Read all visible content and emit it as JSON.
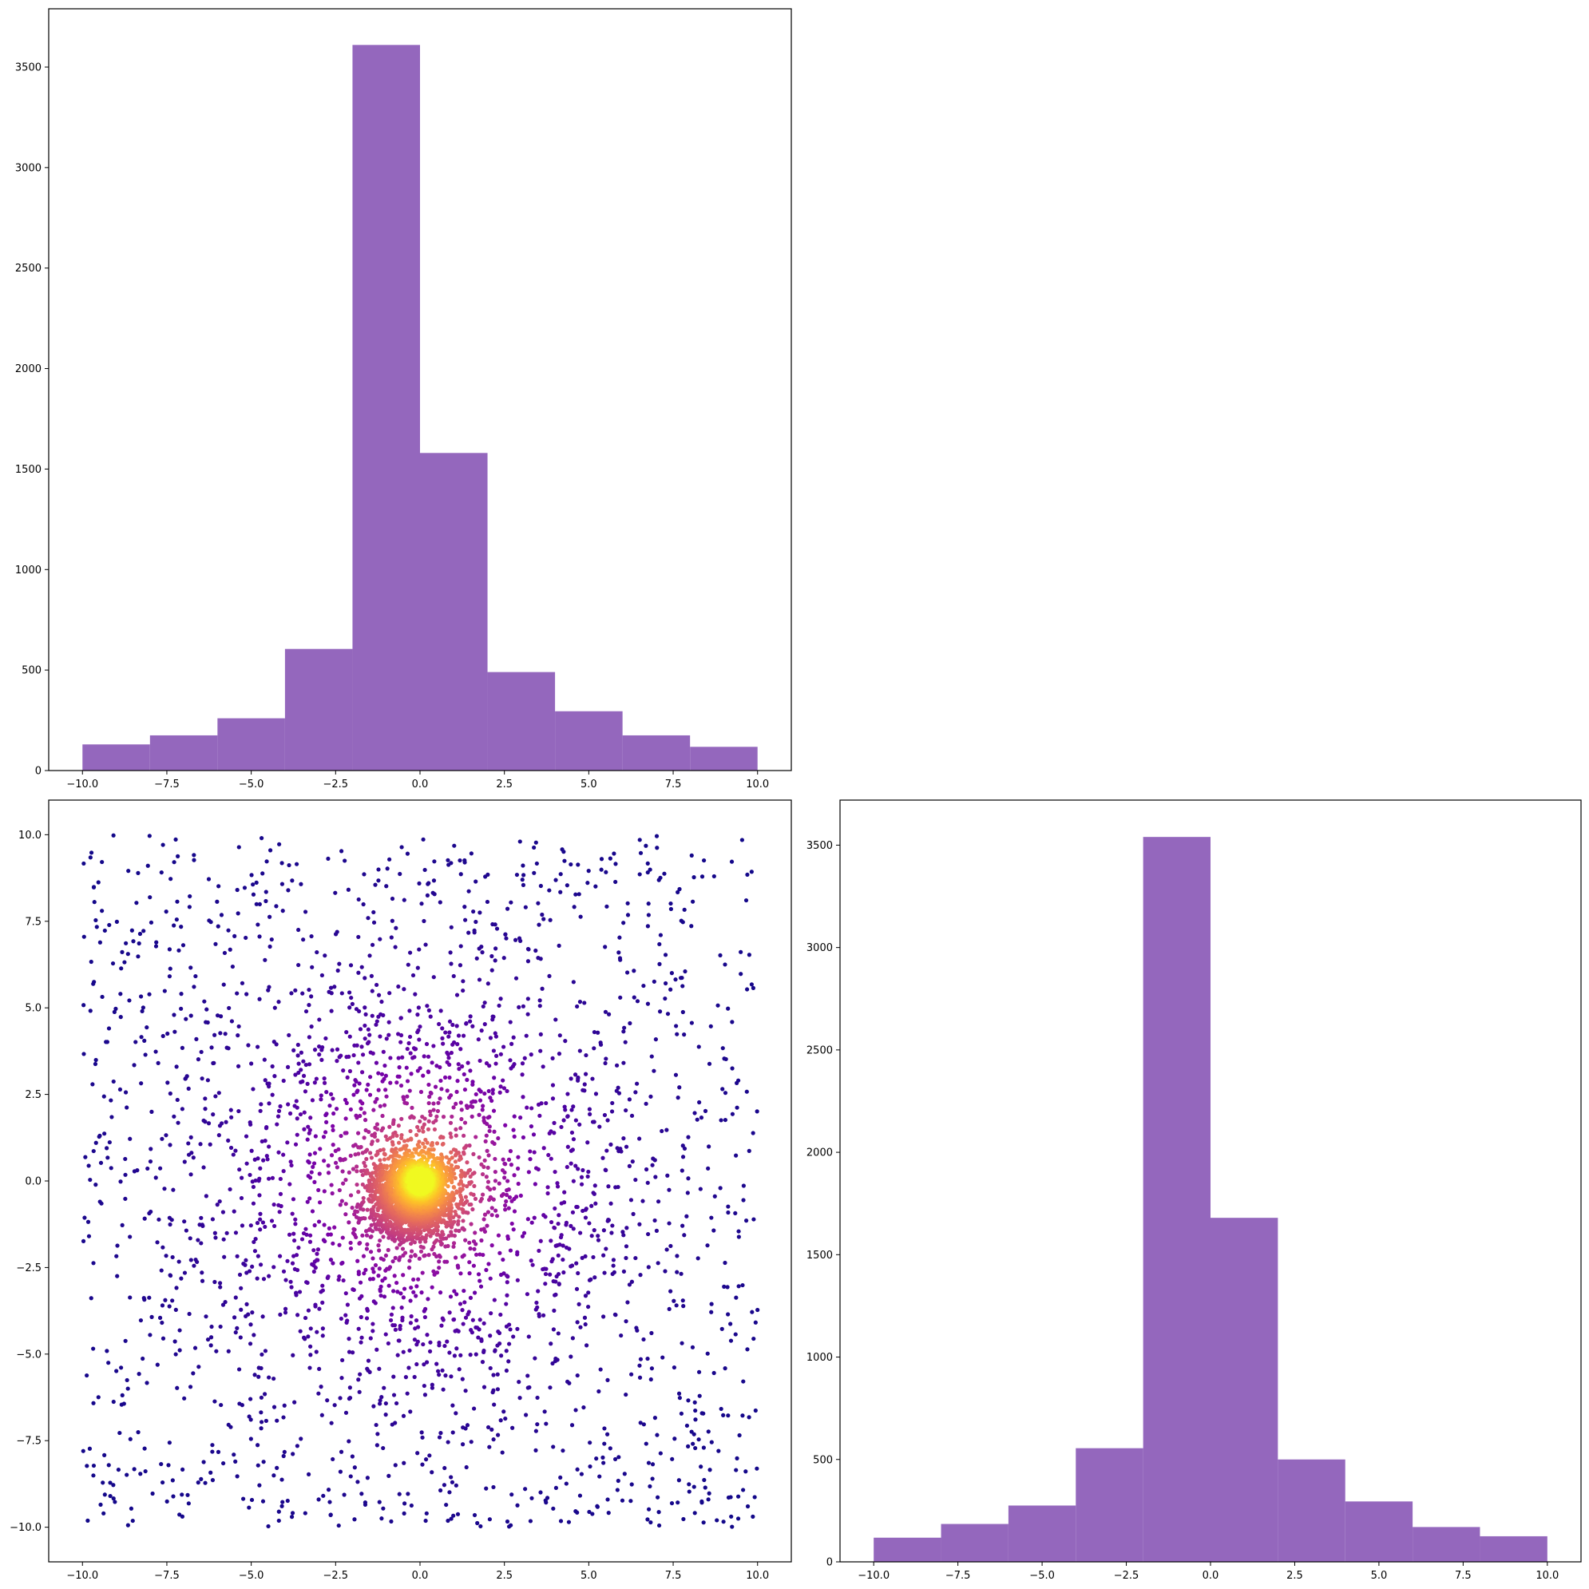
{
  "chart_data": [
    {
      "id": "hist-x",
      "type": "bar",
      "title": "",
      "xlabel": "",
      "ylabel": "",
      "bin_edges": [
        -10,
        -8,
        -6,
        -4,
        -2,
        0,
        2,
        4,
        6,
        8,
        10
      ],
      "values": [
        130,
        175,
        260,
        605,
        3610,
        1580,
        490,
        295,
        175,
        118
      ],
      "xlim": [
        -11,
        11
      ],
      "ylim": [
        0,
        3790
      ],
      "xticks": [
        -10.0,
        -7.5,
        -5.0,
        -2.5,
        0.0,
        2.5,
        5.0,
        7.5,
        10.0
      ],
      "xtick_labels": [
        "−10.0",
        "−7.5",
        "−5.0",
        "−2.5",
        "0.0",
        "2.5",
        "5.0",
        "7.5",
        "10.0"
      ],
      "yticks": [
        0,
        500,
        1000,
        1500,
        2000,
        2500,
        3000,
        3500
      ],
      "ytick_labels": [
        "0",
        "500",
        "1000",
        "1500",
        "2000",
        "2500",
        "3000",
        "3500"
      ],
      "color": "#9467bd",
      "grid": false
    },
    {
      "id": "scatter-xy",
      "type": "scatter",
      "title": "",
      "xlabel": "",
      "ylabel": "",
      "description_of_points": "about 5000 points in [-10,10]x[-10,10]; uniform background plus concentrated core near (0,0), colored by density with plasma colormap",
      "n_points": 5000,
      "xlim": [
        -11,
        11
      ],
      "ylim": [
        -11,
        11
      ],
      "xticks": [
        -10.0,
        -7.5,
        -5.0,
        -2.5,
        0.0,
        2.5,
        5.0,
        7.5,
        10.0
      ],
      "xtick_labels": [
        "−10.0",
        "−7.5",
        "−5.0",
        "−2.5",
        "0.0",
        "2.5",
        "5.0",
        "7.5",
        "10.0"
      ],
      "yticks": [
        -10.0,
        -7.5,
        -5.0,
        -2.5,
        0.0,
        2.5,
        5.0,
        7.5,
        10.0
      ],
      "ytick_labels": [
        "−10.0",
        "−7.5",
        "−5.0",
        "−2.5",
        "0.0",
        "2.5",
        "5.0",
        "7.5",
        "10.0"
      ],
      "colormap": "plasma",
      "grid": false
    },
    {
      "id": "hist-y",
      "type": "bar",
      "title": "",
      "xlabel": "",
      "ylabel": "",
      "bin_edges": [
        -10,
        -8,
        -6,
        -4,
        -2,
        0,
        2,
        4,
        6,
        8,
        10
      ],
      "values": [
        118,
        185,
        275,
        555,
        3540,
        1680,
        500,
        295,
        170,
        125
      ],
      "xlim": [
        -11,
        11
      ],
      "ylim": [
        0,
        3720
      ],
      "xticks": [
        -10.0,
        -7.5,
        -5.0,
        -2.5,
        0.0,
        2.5,
        5.0,
        7.5,
        10.0
      ],
      "xtick_labels": [
        "−10.0",
        "−7.5",
        "−5.0",
        "−2.5",
        "0.0",
        "2.5",
        "5.0",
        "7.5",
        "10.0"
      ],
      "yticks": [
        0,
        500,
        1000,
        1500,
        2000,
        2500,
        3000,
        3500
      ],
      "ytick_labels": [
        "0",
        "500",
        "1000",
        "1500",
        "2000",
        "2500",
        "3000",
        "3500"
      ],
      "color": "#9467bd",
      "grid": false
    }
  ]
}
